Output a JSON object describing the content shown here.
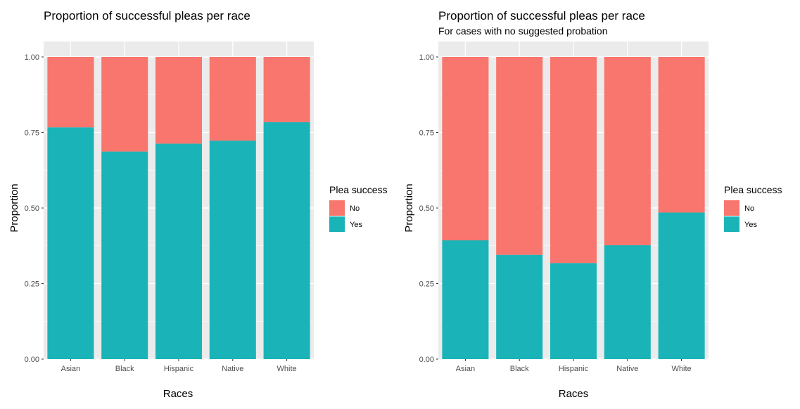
{
  "chart_data": [
    {
      "type": "bar",
      "stacked": true,
      "title": "Proportion of successful pleas per race",
      "subtitle": "",
      "xlabel": "Races",
      "ylabel": "Proportion",
      "categories": [
        "Asian",
        "Black",
        "Hispanic",
        "Native",
        "White"
      ],
      "yticks": [
        "0.00",
        "0.25",
        "0.50",
        "0.75",
        "1.00"
      ],
      "ylim": [
        0,
        1
      ],
      "grid": true,
      "legend_title": "Plea success",
      "legend_position": "right",
      "series": [
        {
          "name": "No",
          "color": "#F8766D",
          "values": [
            0.233,
            0.313,
            0.287,
            0.277,
            0.216
          ]
        },
        {
          "name": "Yes",
          "color": "#1AB4B8",
          "values": [
            0.767,
            0.687,
            0.713,
            0.723,
            0.784
          ]
        }
      ]
    },
    {
      "type": "bar",
      "stacked": true,
      "title": "Proportion of successful pleas per race",
      "subtitle": "For cases with no suggested probation",
      "xlabel": "Races",
      "ylabel": "Proportion",
      "categories": [
        "Asian",
        "Black",
        "Hispanic",
        "Native",
        "White"
      ],
      "yticks": [
        "0.00",
        "0.25",
        "0.50",
        "0.75",
        "1.00"
      ],
      "ylim": [
        0,
        1
      ],
      "grid": true,
      "legend_title": "Plea success",
      "legend_position": "right",
      "series": [
        {
          "name": "No",
          "color": "#F8766D",
          "values": [
            0.607,
            0.655,
            0.682,
            0.623,
            0.515
          ]
        },
        {
          "name": "Yes",
          "color": "#1AB4B8",
          "values": [
            0.393,
            0.345,
            0.318,
            0.377,
            0.485
          ]
        }
      ]
    }
  ]
}
